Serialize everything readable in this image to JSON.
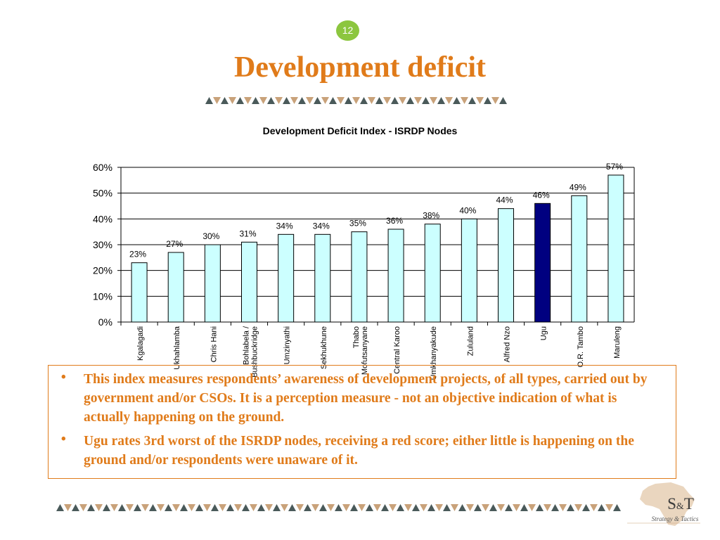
{
  "slide": {
    "page_number": "12",
    "title": "Development deficit"
  },
  "colors": {
    "title": "#e07b1a",
    "badge": "#8cc63f",
    "bar_fill": "#ccffff",
    "bar_highlight": "#000080",
    "deco_dark": "#4a5a5a",
    "deco_light": "#c9a27a"
  },
  "chart_data": {
    "type": "bar",
    "title": "Development Deficit Index - ISRDP Nodes",
    "categories": [
      "Kgalagadi",
      "Ukhahlamba",
      "Chris Hani",
      "Bohlabela / Bushbuckridge",
      "Umzinyathi",
      "Sekhukhune",
      "Thabo Mofutsanyane",
      "Central Karoo",
      "Umkhanyakude",
      "Zululand",
      "Alfred Nzo",
      "Ugu",
      "O.R. Tambo",
      "Maruleng"
    ],
    "category_lines": [
      [
        "Kgalagadi"
      ],
      [
        "Ukhahlamba"
      ],
      [
        "Chris Hani"
      ],
      [
        "Bohlabela /",
        "Bushbuckridge"
      ],
      [
        "Umzinyathi"
      ],
      [
        "Sekhukhune"
      ],
      [
        "Thabo",
        "Mofutsanyane"
      ],
      [
        "Central Karoo"
      ],
      [
        "Umkhanyakude"
      ],
      [
        "Zululand"
      ],
      [
        "Alfred Nzo"
      ],
      [
        "Ugu"
      ],
      [
        "O.R. Tambo"
      ],
      [
        "Maruleng"
      ]
    ],
    "values": [
      23,
      27,
      30,
      31,
      34,
      34,
      35,
      36,
      38,
      40,
      44,
      46,
      49,
      57
    ],
    "data_labels": [
      "23%",
      "27%",
      "30%",
      "31%",
      "34%",
      "34%",
      "35%",
      "36%",
      "38%",
      "40%",
      "44%",
      "46%",
      "49%",
      "57%"
    ],
    "highlight_category": "Ugu",
    "y_ticks": [
      "0%",
      "10%",
      "20%",
      "30%",
      "40%",
      "50%",
      "60%"
    ],
    "ylim": [
      0,
      60
    ],
    "grid": true,
    "xlabel": "",
    "ylabel": ""
  },
  "bullets": [
    "This index measures respondents’ awareness of development projects, of all types, carried out by government and/or CSOs. It is a perception measure - not an objective indication of what is actually happening on the ground.",
    "Ugu rates 3rd worst of the ISRDP nodes, receiving a red score; either little is happening on the ground and/or respondents were unaware of it."
  ],
  "bullet_symbol": "•",
  "logo": {
    "letter_s": "S",
    "ampersand": "&",
    "letter_t": "T",
    "tagline": "Strategy & Tactics"
  }
}
